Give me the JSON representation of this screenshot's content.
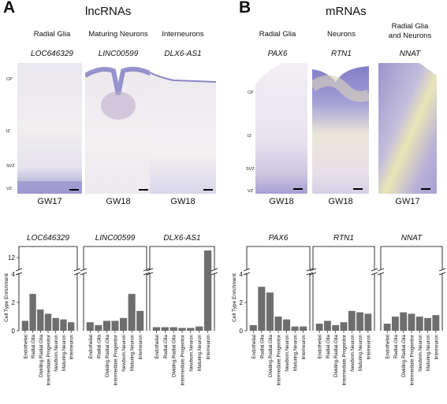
{
  "panel_a": {
    "letter": "A",
    "title": "lncRNAs",
    "columns": [
      {
        "cell_type": "Radial Glia",
        "gene": "LOC646329",
        "stage": "GW17"
      },
      {
        "cell_type": "Maturing Neurons",
        "gene": "LINC00599",
        "stage": "GW18"
      },
      {
        "cell_type": "Interneurons",
        "gene": "DLX6-AS1",
        "stage": "GW18"
      }
    ],
    "zones": [
      "CP",
      "IZ",
      "SVZ",
      "VZ"
    ]
  },
  "panel_b": {
    "letter": "B",
    "title": "mRNAs",
    "columns": [
      {
        "cell_type": "Radial Glia",
        "gene": "PAX6",
        "stage": "GW18"
      },
      {
        "cell_type": "Neurons",
        "gene": "RTN1",
        "stage": "GW18"
      },
      {
        "cell_type_line1": "Radial Glia",
        "cell_type_line2": "and Neurons",
        "gene": "NNAT",
        "stage": "GW17"
      }
    ],
    "zones": [
      "CP",
      "IZ",
      "SVZ",
      "VZ"
    ]
  },
  "colors": {
    "bar": "#6e6e6e",
    "tissue_stain": "#8b86c6",
    "tissue_background": "#f3eff3"
  },
  "chart_data": [
    {
      "type": "bar",
      "title": "LOC646329",
      "ylabel": "Cell Type Enrichment",
      "categories": [
        "Endothelial",
        "Radial.Glia",
        "Dividing.Radial.Glia",
        "Intermediate.Progenitor",
        "Newborn.Neuron",
        "Maturing.Neuron",
        "Interneuron"
      ],
      "values": [
        0.7,
        2.6,
        1.5,
        1.2,
        0.9,
        0.8,
        0.6
      ],
      "yticks": [
        0,
        2,
        4,
        12
      ],
      "axis_break": true,
      "ylim": [
        0,
        12.5
      ]
    },
    {
      "type": "bar",
      "title": "LINC00599",
      "categories": [
        "Endothelial",
        "Radial.Glia",
        "Dividing.Radial.Glia",
        "Intermediate.Progenitor",
        "Newborn.Neuron",
        "Maturing.Neuron",
        "Interneuron"
      ],
      "values": [
        0.6,
        0.4,
        0.7,
        0.7,
        0.9,
        2.6,
        1.4
      ],
      "axis_break": true,
      "ylim": [
        0,
        12.5
      ]
    },
    {
      "type": "bar",
      "title": "DLX6-AS1",
      "categories": [
        "Endothelial",
        "Radial.Glia",
        "Dividing.Radial.Glia",
        "Intermediate.Progenitor",
        "Newborn.Neuron",
        "Maturing.Neuron",
        "Interneuron"
      ],
      "values": [
        0.25,
        0.25,
        0.25,
        0.2,
        0.2,
        0.3,
        12.8
      ],
      "axis_break": true,
      "ylim": [
        0,
        12.5
      ]
    },
    {
      "type": "bar",
      "title": "PAX6",
      "ylabel": "Cell Type Enrichment",
      "categories": [
        "Endothelial",
        "Radial.Glia",
        "Dividing.Radial.Glia",
        "Intermediate.Progenitor",
        "Newborn.Neuron",
        "Maturing.Neuron",
        "Interneuron"
      ],
      "values": [
        0.4,
        3.1,
        2.7,
        1.0,
        0.8,
        0.3,
        0.3
      ],
      "yticks": [
        0,
        2,
        4
      ],
      "axis_break": true,
      "ylim": [
        0,
        12.5
      ]
    },
    {
      "type": "bar",
      "title": "RTN1",
      "categories": [
        "Endothelial",
        "Radial.Glia",
        "Dividing.Radial.Glia",
        "Intermediate.Progenitor",
        "Newborn.Neuron",
        "Maturing.Neuron",
        "Interneuron"
      ],
      "values": [
        0.5,
        0.7,
        0.4,
        0.6,
        1.4,
        1.3,
        1.2
      ],
      "axis_break": true,
      "ylim": [
        0,
        12.5
      ]
    },
    {
      "type": "bar",
      "title": "NNAT",
      "categories": [
        "Endothelial",
        "Radial.Glia",
        "Dividing.Radial.Glia",
        "Intermediate.Progenitor",
        "Newborn.Neuron",
        "Maturing.Neuron",
        "Interneuron"
      ],
      "values": [
        0.5,
        1.0,
        1.3,
        1.2,
        1.0,
        0.9,
        1.1
      ],
      "axis_break": true,
      "ylim": [
        0,
        12.5
      ]
    }
  ]
}
